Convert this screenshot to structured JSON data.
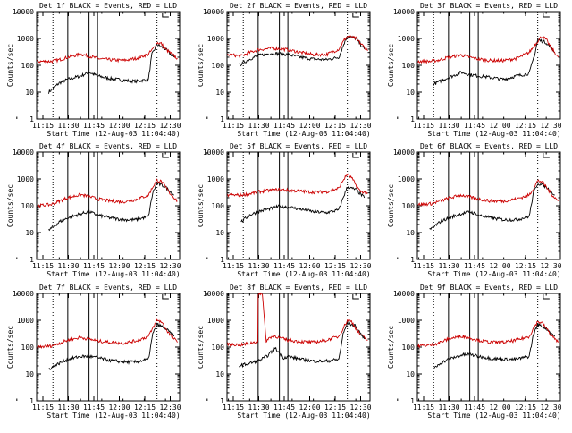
{
  "figure": {
    "background": "#ffffff",
    "event_color": "#000000",
    "lld_color": "#cc0000"
  },
  "chart_data": [
    {
      "type": "line",
      "title": "Det 1f BLACK = Events, RED = LLD",
      "xlabel": "Start Time (12-Aug-03 11:04:40)",
      "ylabel": "Counts/sec",
      "xtick_labels": [
        "11:15",
        "11:30",
        "11:45",
        "12:00",
        "12:15",
        "12:30"
      ],
      "ytick_labels": [
        "1",
        "10",
        "100",
        "1000",
        "10000"
      ],
      "xlim_min": [
        4.667,
        38.333
      ],
      "ylim": [
        1,
        10000
      ],
      "scale_y": "log",
      "dotted_lines_min": [
        8.5,
        33
      ],
      "solid_lines_min": [
        12,
        17,
        19
      ],
      "marker_label": "",
      "series": [
        {
          "name": "Events",
          "x": [
            7.5,
            10,
            12,
            15,
            17,
            19,
            22,
            25,
            28,
            31,
            31.7,
            31.8,
            33,
            35,
            37
          ],
          "y": [
            10,
            22,
            30,
            40,
            55,
            40,
            32,
            28,
            25,
            30,
            200,
            250,
            600,
            400,
            200
          ]
        },
        {
          "name": "LLD",
          "x": [
            4.8,
            8,
            10,
            12,
            15,
            17,
            19,
            22,
            25,
            28,
            31,
            32,
            33,
            34,
            35,
            36,
            37.8
          ],
          "y": [
            140,
            140,
            160,
            200,
            260,
            220,
            180,
            160,
            150,
            180,
            260,
            400,
            700,
            650,
            400,
            300,
            180
          ]
        }
      ]
    },
    {
      "type": "line",
      "title": "Det 2f BLACK = Events, RED = LLD",
      "xlabel": "Start Time (12-Aug-03 11:04:40)",
      "ylabel": "Counts/sec",
      "xtick_labels": [
        "11:15",
        "11:30",
        "11:45",
        "12:00",
        "12:15",
        "12:30"
      ],
      "ytick_labels": [
        "1",
        "10",
        "100",
        "1000",
        "10000"
      ],
      "xlim_min": [
        4.667,
        38.333
      ],
      "ylim": [
        1,
        10000
      ],
      "scale_y": "log",
      "dotted_lines_min": [
        8.5,
        33
      ],
      "solid_lines_min": [
        12,
        17,
        19
      ],
      "marker_label": "",
      "series": [
        {
          "name": "Events",
          "x": [
            7.5,
            10,
            12,
            15,
            17,
            19,
            22,
            25,
            28,
            31,
            32.3,
            33,
            35,
            37
          ],
          "y": [
            100,
            170,
            230,
            280,
            270,
            250,
            200,
            170,
            160,
            200,
            700,
            1200,
            1000,
            400
          ]
        },
        {
          "name": "LLD",
          "x": [
            4.8,
            8,
            10,
            12,
            15,
            17,
            19,
            22,
            25,
            28,
            31,
            32.3,
            33,
            35,
            37.8
          ],
          "y": [
            250,
            220,
            300,
            380,
            430,
            420,
            380,
            300,
            250,
            250,
            400,
            900,
            1200,
            1000,
            350
          ]
        }
      ]
    },
    {
      "type": "line",
      "title": "Det 3f BLACK = Events, RED = LLD",
      "xlabel": "Start Time (12-Aug-03 11:04:40)",
      "ylabel": "Counts/sec",
      "xtick_labels": [
        "11:15",
        "11:30",
        "11:45",
        "12:00",
        "12:15",
        "12:30"
      ],
      "ytick_labels": [
        "1",
        "10",
        "100",
        "1000",
        "10000"
      ],
      "xlim_min": [
        4.667,
        38.333
      ],
      "ylim": [
        1,
        10000
      ],
      "scale_y": "log",
      "dotted_lines_min": [
        8.5,
        33
      ],
      "solid_lines_min": [
        12,
        17,
        19
      ],
      "marker_label": "",
      "series": [
        {
          "name": "Events",
          "x": [
            8.5,
            11,
            13,
            15,
            17,
            19,
            22,
            25,
            28,
            31,
            32.4,
            33,
            35,
            37
          ],
          "y": [
            20,
            30,
            40,
            55,
            45,
            40,
            35,
            30,
            40,
            50,
            300,
            900,
            700,
            300
          ]
        },
        {
          "name": "LLD",
          "x": [
            4.8,
            8,
            10,
            12,
            15,
            17,
            19,
            22,
            25,
            28,
            31,
            33,
            34,
            35,
            36,
            37.8
          ],
          "y": [
            140,
            140,
            160,
            200,
            240,
            200,
            170,
            150,
            150,
            180,
            300,
            800,
            1200,
            900,
            500,
            200
          ]
        }
      ]
    },
    {
      "type": "line",
      "title": "Det 4f BLACK = Events, RED = LLD",
      "xlabel": "Start Time (12-Aug-03 11:04:40)",
      "ylabel": "Counts/sec",
      "xtick_labels": [
        "11:15",
        "11:30",
        "11:45",
        "12:00",
        "12:15",
        "12:30"
      ],
      "ytick_labels": [
        "1",
        "10",
        "100",
        "1000",
        "10000"
      ],
      "xlim_min": [
        4.667,
        38.333
      ],
      "ylim": [
        1,
        10000
      ],
      "scale_y": "log",
      "dotted_lines_min": [
        8.5,
        33
      ],
      "solid_lines_min": [
        12,
        17,
        19
      ],
      "marker_label": "",
      "series": [
        {
          "name": "Events",
          "x": [
            7.5,
            10,
            12,
            15,
            17,
            19,
            22,
            25,
            28,
            31,
            32,
            33,
            35,
            37
          ],
          "y": [
            12,
            25,
            35,
            50,
            60,
            45,
            35,
            30,
            30,
            40,
            300,
            700,
            500,
            250
          ]
        },
        {
          "name": "LLD",
          "x": [
            4.8,
            8,
            10,
            12,
            15,
            17,
            19,
            22,
            25,
            28,
            31,
            32,
            33,
            34,
            35,
            36,
            37.8
          ],
          "y": [
            100,
            110,
            150,
            200,
            260,
            220,
            180,
            150,
            140,
            170,
            250,
            500,
            900,
            800,
            500,
            300,
            150
          ]
        }
      ]
    },
    {
      "type": "line",
      "title": "Det 5f BLACK = Events, RED = LLD",
      "xlabel": "Start Time (12-Aug-03 11:04:40)",
      "ylabel": "Counts/sec",
      "xtick_labels": [
        "11:15",
        "11:30",
        "11:45",
        "12:00",
        "12:15",
        "12:30"
      ],
      "ytick_labels": [
        "1",
        "10",
        "100",
        "1000",
        "10000"
      ],
      "xlim_min": [
        4.667,
        38.333
      ],
      "ylim": [
        1,
        10000
      ],
      "scale_y": "log",
      "dotted_lines_min": [
        8.5,
        33
      ],
      "solid_lines_min": [
        12,
        17,
        19
      ],
      "marker_label": "",
      "series": [
        {
          "name": "Events",
          "x": [
            8,
            10,
            12,
            15,
            17,
            19,
            22,
            25,
            28,
            31,
            32,
            33,
            35,
            37
          ],
          "y": [
            25,
            45,
            60,
            80,
            95,
            90,
            75,
            60,
            55,
            70,
            200,
            500,
            400,
            200
          ]
        },
        {
          "name": "LLD",
          "x": [
            4.8,
            8,
            10,
            12,
            15,
            17,
            19,
            22,
            25,
            28,
            31,
            32,
            33,
            34,
            35,
            36,
            37.8
          ],
          "y": [
            250,
            250,
            280,
            330,
            380,
            400,
            380,
            350,
            320,
            330,
            450,
            900,
            1500,
            1100,
            600,
            350,
            300
          ]
        }
      ]
    },
    {
      "type": "line",
      "title": "Det 6f BLACK = Events, RED = LLD",
      "xlabel": "Start Time (12-Aug-03 11:04:40)",
      "ylabel": "Counts/sec",
      "xtick_labels": [
        "11:15",
        "11:30",
        "11:45",
        "12:00",
        "12:15",
        "12:30"
      ],
      "ytick_labels": [
        "1",
        "10",
        "100",
        "1000",
        "10000"
      ],
      "xlim_min": [
        4.667,
        38.333
      ],
      "ylim": [
        1,
        10000
      ],
      "scale_y": "log",
      "dotted_lines_min": [
        8.5,
        33
      ],
      "solid_lines_min": [
        12,
        17,
        19
      ],
      "marker_label": "",
      "series": [
        {
          "name": "Events",
          "x": [
            7.5,
            10,
            12,
            15,
            17,
            19,
            22,
            25,
            28,
            31,
            32,
            33,
            35,
            37
          ],
          "y": [
            12,
            25,
            35,
            50,
            60,
            45,
            35,
            30,
            30,
            40,
            300,
            700,
            500,
            250
          ]
        },
        {
          "name": "LLD",
          "x": [
            4.8,
            8,
            10,
            12,
            15,
            17,
            19,
            22,
            25,
            28,
            31,
            32,
            33,
            34,
            35,
            36,
            37.8
          ],
          "y": [
            110,
            120,
            150,
            190,
            250,
            210,
            180,
            150,
            150,
            180,
            250,
            450,
            850,
            800,
            500,
            300,
            150
          ]
        }
      ]
    },
    {
      "type": "line",
      "title": "Det 7f BLACK = Events, RED = LLD",
      "xlabel": "Start Time (12-Aug-03 11:04:40)",
      "ylabel": "Counts/sec",
      "xtick_labels": [
        "11:15",
        "11:30",
        "11:45",
        "12:00",
        "12:15",
        "12:30"
      ],
      "ytick_labels": [
        "1",
        "10",
        "100",
        "1000",
        "10000"
      ],
      "xlim_min": [
        4.667,
        38.333
      ],
      "ylim": [
        1,
        10000
      ],
      "scale_y": "log",
      "dotted_lines_min": [
        8.5,
        33
      ],
      "solid_lines_min": [
        12,
        17,
        19
      ],
      "marker_label": "",
      "series": [
        {
          "name": "Events",
          "x": [
            7.5,
            10,
            12,
            15,
            17,
            19,
            22,
            25,
            28,
            31,
            32,
            33,
            35,
            37
          ],
          "y": [
            15,
            25,
            35,
            45,
            45,
            40,
            32,
            28,
            28,
            35,
            300,
            700,
            500,
            250
          ]
        },
        {
          "name": "LLD",
          "x": [
            4.8,
            8,
            10,
            12,
            15,
            17,
            19,
            22,
            25,
            28,
            31,
            32,
            33,
            34,
            35,
            36,
            37.8
          ],
          "y": [
            100,
            110,
            140,
            180,
            230,
            200,
            170,
            150,
            140,
            170,
            250,
            500,
            1000,
            900,
            500,
            300,
            150
          ]
        }
      ]
    },
    {
      "type": "line",
      "title": "Det 8f BLACK = Events, RED = LLD",
      "xlabel": "Start Time (12-Aug-03 11:04:40)",
      "ylabel": "Counts/sec",
      "xtick_labels": [
        "11:15",
        "11:30",
        "11:45",
        "12:00",
        "12:15",
        "12:30"
      ],
      "ytick_labels": [
        "1",
        "10",
        "100",
        "1000",
        "10000"
      ],
      "xlim_min": [
        4.667,
        38.333
      ],
      "ylim": [
        1,
        10000
      ],
      "scale_y": "log",
      "dotted_lines_min": [
        8.5,
        33
      ],
      "solid_lines_min": [
        12,
        17,
        19
      ],
      "marker_label": "",
      "series": [
        {
          "name": "Events",
          "x": [
            7.5,
            10,
            12,
            14,
            16,
            18,
            19,
            22,
            25,
            28,
            31,
            32,
            33,
            35,
            37
          ],
          "y": [
            20,
            25,
            30,
            45,
            90,
            40,
            45,
            35,
            30,
            30,
            35,
            300,
            800,
            600,
            200
          ]
        },
        {
          "name": "LLD",
          "x": [
            4.8,
            8,
            10,
            11.9,
            12,
            13,
            13.9,
            14,
            15,
            16,
            17,
            19,
            22,
            25,
            28,
            31,
            32,
            33,
            34,
            35,
            36,
            37.8
          ],
          "y": [
            130,
            120,
            140,
            160,
            9000,
            9000,
            160,
            180,
            240,
            260,
            220,
            180,
            160,
            150,
            180,
            250,
            500,
            1000,
            900,
            500,
            300,
            180
          ]
        }
      ]
    },
    {
      "type": "line",
      "title": "Det 9f BLACK = Events, RED = LLD",
      "xlabel": "Start Time (12-Aug-03 11:04:40)",
      "ylabel": "Counts/sec",
      "xtick_labels": [
        "11:15",
        "11:30",
        "11:45",
        "12:00",
        "12:15",
        "12:30"
      ],
      "ytick_labels": [
        "1",
        "10",
        "100",
        "1000",
        "10000"
      ],
      "xlim_min": [
        4.667,
        38.333
      ],
      "ylim": [
        1,
        10000
      ],
      "scale_y": "log",
      "dotted_lines_min": [
        8.5,
        33
      ],
      "solid_lines_min": [
        12,
        17,
        19
      ],
      "marker_label": "",
      "series": [
        {
          "name": "Events",
          "x": [
            8.5,
            10,
            12,
            15,
            17,
            19,
            22,
            25,
            28,
            31,
            32,
            33,
            35,
            37
          ],
          "y": [
            15,
            25,
            35,
            50,
            55,
            45,
            38,
            35,
            35,
            45,
            300,
            700,
            500,
            250
          ]
        },
        {
          "name": "LLD",
          "x": [
            4.8,
            8,
            10,
            12,
            15,
            17,
            19,
            22,
            25,
            28,
            31,
            32,
            33,
            34,
            35,
            36,
            37.8
          ],
          "y": [
            110,
            120,
            150,
            200,
            260,
            220,
            180,
            150,
            150,
            180,
            250,
            500,
            900,
            800,
            500,
            300,
            150
          ]
        }
      ]
    }
  ]
}
